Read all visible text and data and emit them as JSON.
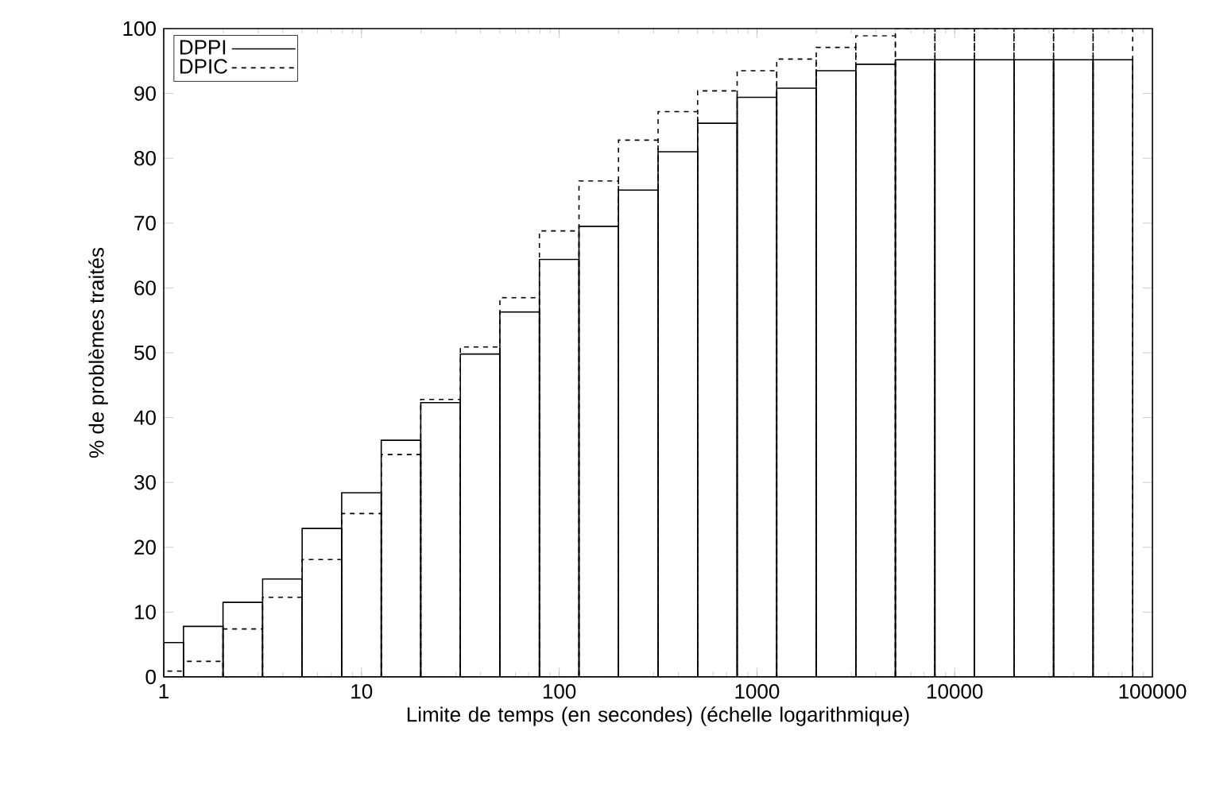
{
  "chart_data": {
    "type": "histogram",
    "xlabel": "Limite de temps (en secondes) (échelle logarithmique)",
    "ylabel": "% de problèmes traités",
    "log": "x",
    "xlim": [
      1,
      100000
    ],
    "xticks": [
      1,
      10,
      100,
      1000,
      10000,
      100000
    ],
    "ylim": [
      0,
      100
    ],
    "yticks": [
      0,
      10,
      20,
      30,
      40,
      50,
      60,
      70,
      80,
      90,
      100
    ],
    "legend": "top left",
    "grid": false,
    "bins": [
      1,
      1.259,
      1.995,
      3.162,
      5.012,
      7.943,
      12.59,
      19.95,
      31.62,
      50.12,
      79.43,
      125.9,
      199.5,
      316.2,
      501.2,
      794.3,
      1259,
      1995,
      3162,
      5012,
      7943,
      12589,
      19953,
      31623,
      50119,
      79433
    ],
    "series": [
      {
        "name": "DPPI",
        "color": "#000000",
        "line_style": "solid",
        "values": [
          5.3,
          7.8,
          11.5,
          15.1,
          22.9,
          28.4,
          36.5,
          42.3,
          49.8,
          56.3,
          64.4,
          69.5,
          75.1,
          81.0,
          85.4,
          89.4,
          90.8,
          93.5,
          94.5,
          95.2,
          95.2,
          95.2,
          95.2,
          95.2,
          95.2
        ]
      },
      {
        "name": "DPIC",
        "color": "#000000",
        "line_style": "dashed",
        "values": [
          0.9,
          2.4,
          7.4,
          12.3,
          18.1,
          25.2,
          34.3,
          42.8,
          50.9,
          58.5,
          68.8,
          76.5,
          82.8,
          87.2,
          90.4,
          93.5,
          95.3,
          97.1,
          98.9,
          100,
          100,
          100,
          100,
          100,
          100
        ]
      }
    ]
  }
}
